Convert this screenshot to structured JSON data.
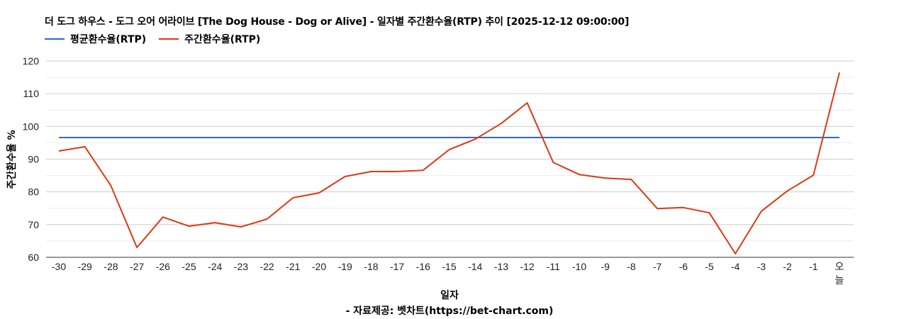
{
  "title": "더 도그 하우스 - 도그 오어 어라이브 [The Dog House - Dog or Alive] - 일자별 주간환수율(RTP) 추이 [2025-12-12 09:00:00]",
  "legend": [
    {
      "label": "평균환수율(RTP)",
      "color": "#3366cc"
    },
    {
      "label": "주간환수율(RTP)",
      "color": "#dc3912"
    }
  ],
  "xlabel": "일자",
  "ylabel": "주간환수율 %",
  "credit": "- 자료제공: 벳차트(https://bet-chart.com)",
  "chart_data": {
    "type": "line",
    "title": "더 도그 하우스 - 도그 오어 어라이브 [The Dog House - Dog or Alive] - 일자별 주간환수율(RTP) 추이 [2025-12-12 09:00:00]",
    "xlabel": "일자",
    "ylabel": "주간환수율 %",
    "ylim": [
      60,
      120
    ],
    "yticks": [
      60,
      70,
      80,
      90,
      100,
      110,
      120
    ],
    "grid": true,
    "legend_position": "top-left",
    "categories": [
      "-30",
      "-29",
      "-28",
      "-27",
      "-26",
      "-25",
      "-24",
      "-23",
      "-22",
      "-21",
      "-20",
      "-19",
      "-18",
      "-17",
      "-16",
      "-15",
      "-14",
      "-13",
      "-12",
      "-11",
      "-10",
      "-9",
      "-8",
      "-7",
      "-6",
      "-5",
      "-4",
      "-3",
      "-2",
      "-1",
      "오늘"
    ],
    "series": [
      {
        "name": "평균환수율(RTP)",
        "color": "#3366cc",
        "values": [
          96.6,
          96.6,
          96.6,
          96.6,
          96.6,
          96.6,
          96.6,
          96.6,
          96.6,
          96.6,
          96.6,
          96.6,
          96.6,
          96.6,
          96.6,
          96.6,
          96.6,
          96.6,
          96.6,
          96.6,
          96.6,
          96.6,
          96.6,
          96.6,
          96.6,
          96.6,
          96.6,
          96.6,
          96.6,
          96.6,
          96.6
        ]
      },
      {
        "name": "주간환수율(RTP)",
        "color": "#dc3912",
        "values": [
          92.5,
          93.8,
          81.9,
          63.0,
          72.3,
          69.5,
          70.6,
          69.3,
          71.7,
          78.2,
          79.7,
          84.7,
          86.2,
          86.2,
          86.6,
          92.9,
          96.1,
          100.9,
          107.2,
          89.0,
          85.3,
          84.2,
          83.8,
          74.9,
          75.2,
          73.6,
          61.1,
          74.1,
          80.3,
          85.1,
          116.5
        ]
      }
    ]
  }
}
